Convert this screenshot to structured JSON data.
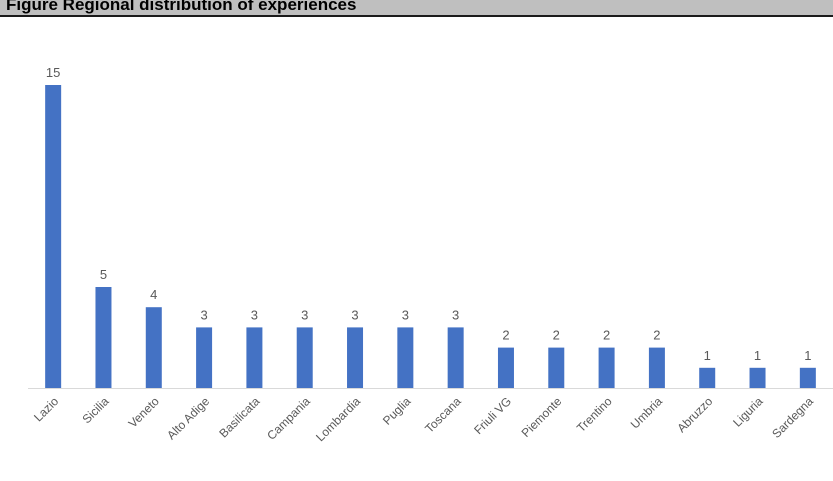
{
  "header": {
    "title": "Figure Regional distribution of experiences"
  },
  "chart_data": {
    "type": "bar",
    "title": "",
    "xlabel": "",
    "ylabel": "",
    "ylim": [
      0,
      15
    ],
    "grid": false,
    "legend": "none",
    "categories": [
      "Lazio",
      "Sicilia",
      "Veneto",
      "Alto Adige",
      "Basilicata",
      "Campania",
      "Lombardia",
      "Puglia",
      "Toscana",
      "Friuli VG",
      "Piemonte",
      "Trentino",
      "Umbria",
      "Abruzzo",
      "Liguria",
      "Sardegna"
    ],
    "values": [
      15,
      5,
      4,
      3,
      3,
      3,
      3,
      3,
      3,
      2,
      2,
      2,
      2,
      1,
      1,
      1
    ],
    "bar_color": "#4472c4",
    "axis_color": "#d9d9d9",
    "label_color": "#595959"
  }
}
